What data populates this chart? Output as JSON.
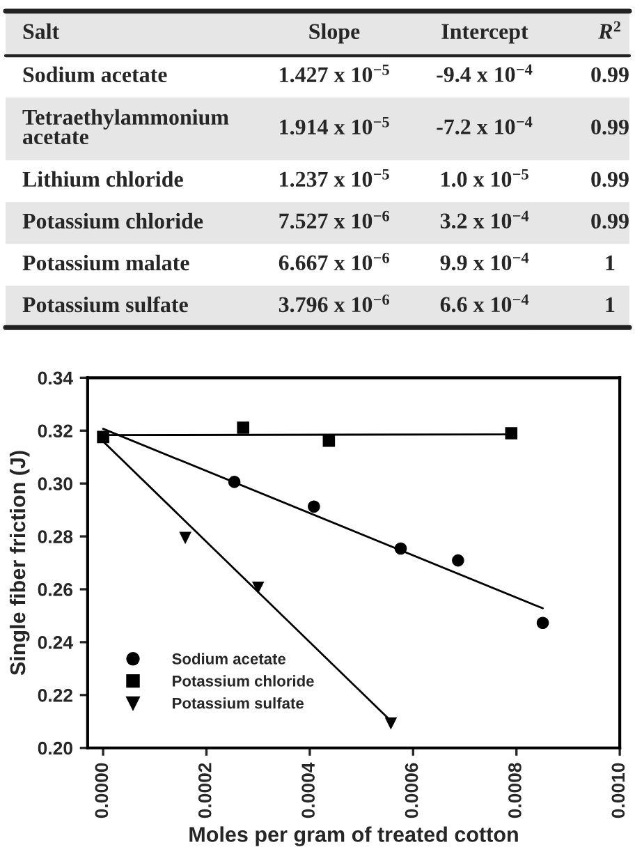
{
  "chart_data": [
    {
      "type": "other",
      "annotations": [
        "Salt",
        "Slope",
        "Intercept",
        "R$^{2}$",
        "Sodium acetate",
        "1.427 x 10$^{−5}$",
        "-9.4 x 10$^{−4}$",
        "0.99",
        "Tetraethylammonium\nacetate",
        "1.914 x 10$^{−5}$",
        "-7.2 x 10$^{−4}$",
        "0.99",
        "Lithium chloride",
        "1.237 x 10$^{−5}$",
        "1.0 x 10$^{−5}$",
        "0.99",
        "Potassium chloride",
        "7.527 x 10$^{−6}$",
        "3.2 x 10$^{−4}$",
        "0.99",
        "Potassium malate",
        "6.667 x 10$^{−6}$",
        "9.9 x 10$^{−4}$",
        "1",
        "Potassium sulfate",
        "3.796 x 10$^{−6}$",
        "6.6 x 10$^{−4}$",
        "1"
      ]
    },
    {
      "type": "scatter",
      "xlabel": "Moles per gram of treated cotton",
      "ylabel": "Single fiber friction (J)",
      "xlim": [
        -3e-05,
        0.001
      ],
      "ylim": [
        0.2,
        0.34
      ],
      "xticks": [
        {
          "value": 0,
          "label": "0.0000"
        },
        {
          "value": 0.0002,
          "label": "0.0002"
        },
        {
          "value": 0.0004,
          "label": "0.0004"
        },
        {
          "value": 0.0006,
          "label": "0.0006"
        },
        {
          "value": 0.0008,
          "label": "0.0008"
        },
        {
          "value": 0.001,
          "label": "0.0010"
        }
      ],
      "yticks": [
        {
          "value": 0.2,
          "label": "0.20"
        },
        {
          "value": 0.22,
          "label": "0.22"
        },
        {
          "value": 0.24,
          "label": "0.24"
        },
        {
          "value": 0.26,
          "label": "0.26"
        },
        {
          "value": 0.28,
          "label": "0.28"
        },
        {
          "value": 0.3,
          "label": "0.30"
        },
        {
          "value": 0.32,
          "label": "0.32"
        },
        {
          "value": 0.34,
          "label": "0.34"
        }
      ],
      "grid": false,
      "legend": "bottom left",
      "series": [
        {
          "name": "Sodium acetate",
          "color": "#000000",
          "marker": "circle",
          "x": [
            0.000254,
            0.000408,
            0.000576,
            0.000687,
            0.000851
          ],
          "values": [
            0.3006,
            0.2913,
            0.2754,
            0.2709,
            0.2473
          ]
        },
        {
          "name": "Potassium chloride",
          "color": "#000000",
          "marker": "square",
          "x": [
            0,
            0.000271,
            0.000437,
            0.00079
          ],
          "values": [
            0.3176,
            0.3211,
            0.3162,
            0.319
          ]
        },
        {
          "name": "Potassium sulfate",
          "color": "#000000",
          "marker": "triangle",
          "x": [
            0.000159,
            0.0003,
            0.000557
          ],
          "values": [
            0.2794,
            0.2606,
            0.2092
          ]
        },
        {
          "type": "line",
          "color": "#000000",
          "x": [
            0,
            0.000851
          ],
          "values": [
            0.3207,
            0.2528
          ]
        },
        {
          "type": "line",
          "color": "#000000",
          "x": [
            0,
            0.00079
          ],
          "values": [
            0.3183,
            0.3186
          ]
        },
        {
          "type": "line",
          "color": "#000000",
          "x": [
            0,
            0.000557
          ],
          "values": [
            0.3159,
            0.2102
          ]
        }
      ]
    }
  ]
}
